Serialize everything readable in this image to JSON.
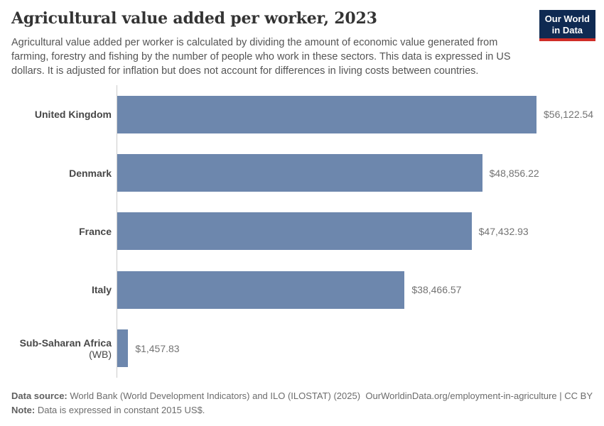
{
  "header": {
    "title": "Agricultural value added per worker, 2023",
    "subtitle": "Agricultural value added per worker is calculated by dividing the amount of economic value generated from farming, forestry and fishing by the number of people who work in these sectors. This data is expressed in US dollars. It is adjusted for inflation but does not account for differences in living costs between countries.",
    "logo_line1": "Our World",
    "logo_line2": "in Data"
  },
  "chart_data": {
    "type": "bar",
    "orientation": "horizontal",
    "title": "Agricultural value added per worker, 2023",
    "xlabel": "",
    "ylabel": "",
    "unit": "constant 2015 US$",
    "grid": false,
    "xlim": [
      0,
      56122.54
    ],
    "categories": [
      "United Kingdom",
      "Denmark",
      "France",
      "Italy",
      "Sub-Saharan Africa (WB)"
    ],
    "values": [
      56122.54,
      48856.22,
      47432.93,
      38466.57,
      1457.83
    ],
    "entities": [
      {
        "name": "United Kingdom",
        "suffix": "",
        "value": 56122.54,
        "value_label": "$56,122.54"
      },
      {
        "name": "Denmark",
        "suffix": "",
        "value": 48856.22,
        "value_label": "$48,856.22"
      },
      {
        "name": "France",
        "suffix": "",
        "value": 47432.93,
        "value_label": "$47,432.93"
      },
      {
        "name": "Italy",
        "suffix": "",
        "value": 38466.57,
        "value_label": "$38,466.57"
      },
      {
        "name": "Sub-Saharan Africa",
        "suffix": " (WB)",
        "value": 1457.83,
        "value_label": "$1,457.83"
      }
    ]
  },
  "colors": {
    "bar": "#6d87ad",
    "logo_bg": "#0f2a52",
    "logo_underline": "#cf2d27",
    "axis_line": "#cccccc"
  },
  "footer": {
    "data_source_label": "Data source:",
    "data_source_text": " World Bank (World Development Indicators) and ILO (ILOSTAT) (2025)",
    "note_label": "Note:",
    "note_text": " Data is expressed in constant 2015 US$.",
    "link": "OurWorldinData.org/employment-in-agriculture | CC BY"
  }
}
